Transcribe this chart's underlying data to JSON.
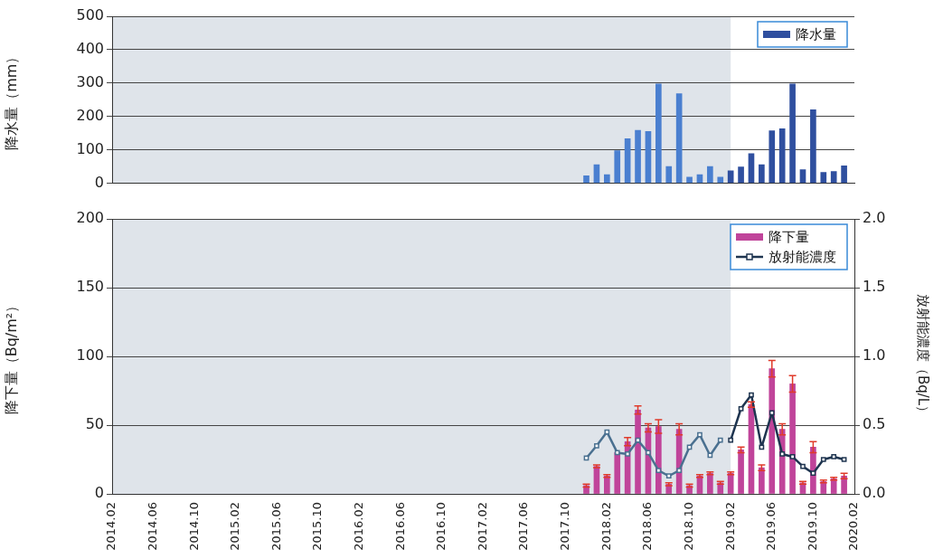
{
  "chart_data": [
    {
      "type": "bar",
      "ylabel": "降水量（mm）",
      "x": [
        "2017-12",
        "2018-01",
        "2018-02",
        "2018-03",
        "2018-04",
        "2018-05",
        "2018-06",
        "2018-07",
        "2018-08",
        "2018-09",
        "2018-10",
        "2018-11",
        "2018-12",
        "2019-01",
        "2019-02",
        "2019-03",
        "2019-04",
        "2019-05",
        "2019-06",
        "2019-07",
        "2019-08",
        "2019-09",
        "2019-10",
        "2019-11",
        "2019-12",
        "2020-01"
      ],
      "xlim": [
        "2014-02",
        "2020-02"
      ],
      "xticks": [
        {
          "value": "2014-02",
          "label": null
        },
        {
          "value": "2014-06",
          "label": null
        },
        {
          "value": "2014-10",
          "label": null
        },
        {
          "value": "2015-02",
          "label": null
        },
        {
          "value": "2015-06",
          "label": null
        },
        {
          "value": "2015-10",
          "label": null
        },
        {
          "value": "2016-02",
          "label": null
        },
        {
          "value": "2016-06",
          "label": null
        },
        {
          "value": "2016-10",
          "label": null
        },
        {
          "value": "2017-02",
          "label": null
        },
        {
          "value": "2017-06",
          "label": null
        },
        {
          "value": "2017-10",
          "label": null
        },
        {
          "value": "2018-02",
          "label": null
        },
        {
          "value": "2018-06",
          "label": null
        },
        {
          "value": "2018-10",
          "label": null
        },
        {
          "value": "2019-02",
          "label": null
        },
        {
          "value": "2019-06",
          "label": null
        },
        {
          "value": "2019-10",
          "label": null
        },
        {
          "value": "2020-02",
          "label": null
        }
      ],
      "ylim": [
        0,
        500
      ],
      "yticks": [
        0,
        100,
        200,
        300,
        400,
        500
      ],
      "grid": "y",
      "legend": "top right",
      "tick_labels": "y",
      "bands": [
        {
          "axis": "x",
          "from": "2014-02",
          "to": "2019-02",
          "color": "#dfe4ea"
        }
      ],
      "series": [
        {
          "name": "降水量",
          "color": "#2f4f9f",
          "colors": [
            "#4a7fd0",
            "#4a7fd0",
            "#4a7fd0",
            "#4a7fd0",
            "#4a7fd0",
            "#4a7fd0",
            "#4a7fd0",
            "#4a7fd0",
            "#4a7fd0",
            "#4a7fd0",
            "#4a7fd0",
            "#4a7fd0",
            "#4a7fd0",
            "#4a7fd0",
            "#2f4f9f",
            "#2f4f9f",
            "#2f4f9f",
            "#2f4f9f",
            "#2f4f9f",
            "#2f4f9f",
            "#2f4f9f",
            "#2f4f9f",
            "#2f4f9f",
            "#2f4f9f",
            "#2f4f9f",
            "#2f4f9f"
          ],
          "values": [
            22,
            55,
            25,
            97,
            133,
            158,
            155,
            297,
            50,
            268,
            18,
            25,
            50,
            18,
            37,
            48,
            88,
            55,
            157,
            163,
            297,
            40,
            220,
            32,
            35,
            52
          ]
        }
      ]
    },
    {
      "type": "bar",
      "ylabel": "降下量（Bq/m²）",
      "y2label": "放射能濃度（Bq/L）",
      "x": [
        "2017-12",
        "2018-01",
        "2018-02",
        "2018-03",
        "2018-04",
        "2018-05",
        "2018-06",
        "2018-07",
        "2018-08",
        "2018-09",
        "2018-10",
        "2018-11",
        "2018-12",
        "2019-01",
        "2019-02",
        "2019-03",
        "2019-04",
        "2019-05",
        "2019-06",
        "2019-07",
        "2019-08",
        "2019-09",
        "2019-10",
        "2019-11",
        "2019-12",
        "2020-01"
      ],
      "xlim": [
        "2014-02",
        "2020-02"
      ],
      "xticks": [
        {
          "value": "2014-02",
          "label": "2014.02"
        },
        {
          "value": "2014-06",
          "label": "2014.06"
        },
        {
          "value": "2014-10",
          "label": "2014.10"
        },
        {
          "value": "2015-02",
          "label": "2015.02"
        },
        {
          "value": "2015-06",
          "label": "2015.06"
        },
        {
          "value": "2015-10",
          "label": "2015.10"
        },
        {
          "value": "2016-02",
          "label": "2016.02"
        },
        {
          "value": "2016-06",
          "label": "2016.06"
        },
        {
          "value": "2016-10",
          "label": "2016.10"
        },
        {
          "value": "2017-02",
          "label": "2017.02"
        },
        {
          "value": "2017-06",
          "label": "2017.06"
        },
        {
          "value": "2017-10",
          "label": "2017.10"
        },
        {
          "value": "2018-02",
          "label": "2018.02"
        },
        {
          "value": "2018-06",
          "label": "2018.06"
        },
        {
          "value": "2018-10",
          "label": "2018.10"
        },
        {
          "value": "2019-02",
          "label": "2019.02"
        },
        {
          "value": "2019-06",
          "label": "2019.06"
        },
        {
          "value": "2019-10",
          "label": "2019.10"
        },
        {
          "value": "2020-02",
          "label": "2020.02"
        }
      ],
      "ylim": [
        0,
        200
      ],
      "yticks": [
        0,
        50,
        100,
        150,
        200
      ],
      "y2lim": [
        0,
        2
      ],
      "y2ticks": [
        {
          "value": 0,
          "label": "0.0"
        },
        {
          "value": 0.5,
          "label": "0.5"
        },
        {
          "value": 1,
          "label": "1.0"
        },
        {
          "value": 1.5,
          "label": "1.5"
        },
        {
          "value": 2,
          "label": "2.0"
        }
      ],
      "grid": "y",
      "legend": "top right",
      "bands": [
        {
          "axis": "x",
          "from": "2014-02",
          "to": "2019-02",
          "color": "#dfe4ea"
        }
      ],
      "series": [
        {
          "name": "降下量",
          "color": "#c0449a",
          "values": [
            6,
            20,
            13,
            30,
            38,
            61,
            48,
            49,
            7,
            47,
            6,
            13,
            15,
            8,
            15,
            32,
            65,
            19,
            91,
            47,
            80,
            8,
            34,
            9,
            11,
            13
          ],
          "errors": [
            1,
            1,
            1,
            null,
            3,
            3,
            3,
            5,
            1,
            4,
            1,
            1,
            1,
            1,
            1,
            2,
            2,
            2,
            6,
            4,
            6,
            1,
            4,
            1,
            1,
            2
          ]
        },
        {
          "type": "line",
          "axis": "y2",
          "marker": "square",
          "color": "#4a7090",
          "x": [
            "2017-12",
            "2018-01",
            "2018-02",
            "2018-03",
            "2018-04",
            "2018-05",
            "2018-06",
            "2018-07",
            "2018-08",
            "2018-09",
            "2018-10",
            "2018-11",
            "2018-12",
            "2019-01"
          ],
          "values": [
            0.26,
            0.35,
            0.45,
            0.3,
            0.29,
            0.39,
            0.3,
            0.17,
            0.13,
            0.17,
            0.34,
            0.43,
            0.28,
            0.39
          ]
        },
        {
          "name": "放射能濃度",
          "type": "line",
          "axis": "y2",
          "marker": "square",
          "color": "#1f3550",
          "x": [
            "2019-02",
            "2019-03",
            "2019-04",
            "2019-05",
            "2019-06",
            "2019-07",
            "2019-08",
            "2019-09",
            "2019-10",
            "2019-11",
            "2019-12",
            "2020-01"
          ],
          "values": [
            0.39,
            0.62,
            0.72,
            0.34,
            0.59,
            0.29,
            0.27,
            0.2,
            0.15,
            0.25,
            0.27,
            0.25
          ]
        }
      ]
    }
  ]
}
